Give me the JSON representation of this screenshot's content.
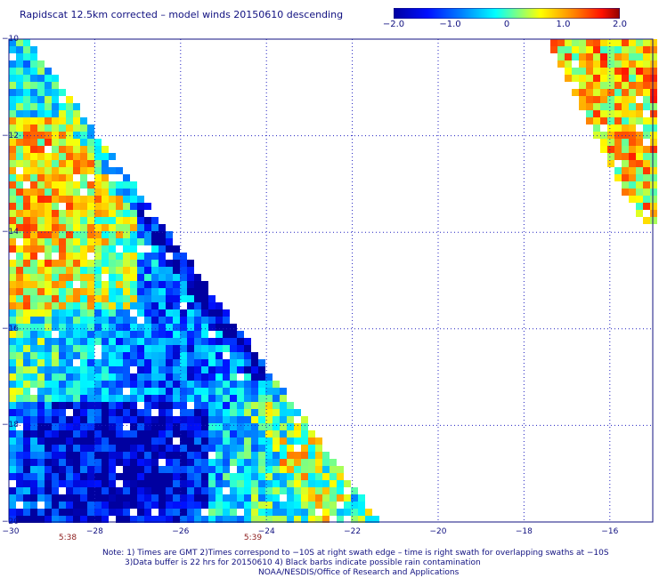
{
  "title": "Rapidscat 12.5km corrected – model winds 20150610 descending",
  "colorbar": {
    "ticks": [
      "−2.0",
      "−1.0",
      "0",
      "1.0",
      "2.0"
    ],
    "min": -2.0,
    "max": 2.0
  },
  "axes": {
    "x_ticks": [
      "−30",
      "−28",
      "−26",
      "−24",
      "−22",
      "−20",
      "−18",
      "−16"
    ],
    "y_ticks": [
      "−10",
      "−12",
      "−14",
      "−16",
      "−18",
      "−20"
    ],
    "xlim": [
      -30,
      -15
    ],
    "ylim": [
      -20,
      -10
    ]
  },
  "times": [
    {
      "label": "5:38"
    },
    {
      "label": "5:39"
    }
  ],
  "notes": {
    "line1": "Note: 1) Times are GMT 2)Times correspond to −10S at right swath edge – time is right swath for overlapping swaths at −10S",
    "line2": "3)Data buffer is 22 hrs for 20150610 4) Black barbs indicate possible rain contamination",
    "line3": "NOAA/NESDIS/Office of Research and Applications"
  },
  "colors": {
    "axis": "#101080",
    "grid": "#2020c0",
    "time_label": "#8b1a1a"
  }
}
